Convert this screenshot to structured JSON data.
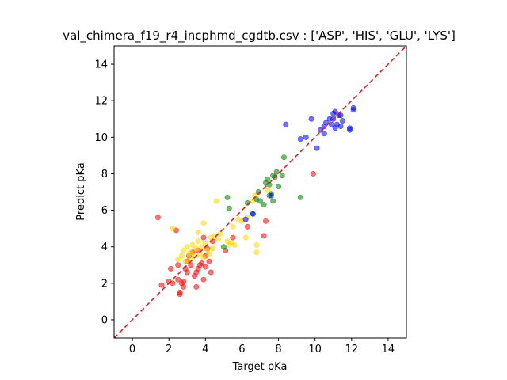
{
  "chart_data": {
    "type": "scatter",
    "title": "val_chimera_f19_r4_incphmd_cgdtb.csv : ['ASP', 'HIS', 'GLU', 'LYS']",
    "xlabel": "Target pKa",
    "ylabel": "Predict pKa",
    "xlim": [
      -1,
      15
    ],
    "ylim": [
      -1,
      15
    ],
    "xticks": [
      0,
      2,
      4,
      6,
      8,
      10,
      12,
      14
    ],
    "yticks": [
      0,
      2,
      4,
      6,
      8,
      10,
      12,
      14
    ],
    "grid": false,
    "reference_line": {
      "x": [
        -1,
        15
      ],
      "y": [
        -1,
        15
      ],
      "color": "#d62728",
      "style": "dashed"
    },
    "series": [
      {
        "color": "#ff0000",
        "points": [
          [
            1.4,
            5.6
          ],
          [
            1.6,
            1.9
          ],
          [
            2.0,
            2.1
          ],
          [
            2.1,
            2.8
          ],
          [
            2.2,
            2.0
          ],
          [
            2.4,
            4.9
          ],
          [
            2.5,
            3.0
          ],
          [
            2.5,
            2.2
          ],
          [
            2.6,
            1.4
          ],
          [
            2.6,
            1.5
          ],
          [
            2.7,
            2.0
          ],
          [
            2.8,
            1.8
          ],
          [
            2.8,
            2.1
          ],
          [
            2.9,
            2.8
          ],
          [
            3.0,
            2.6
          ],
          [
            3.0,
            3.2
          ],
          [
            3.1,
            3.5
          ],
          [
            3.2,
            3.0
          ],
          [
            3.3,
            3.7
          ],
          [
            3.4,
            2.4
          ],
          [
            3.5,
            1.8
          ],
          [
            3.5,
            2.6
          ],
          [
            3.6,
            2.8
          ],
          [
            3.6,
            3.8
          ],
          [
            3.8,
            3.1
          ],
          [
            3.9,
            2.2
          ],
          [
            3.9,
            4.5
          ],
          [
            4.0,
            3.5
          ],
          [
            4.1,
            3.9
          ],
          [
            4.2,
            3.2
          ],
          [
            4.3,
            2.6
          ],
          [
            4.4,
            4.3
          ],
          [
            5.1,
            3.8
          ],
          [
            5.5,
            4.5
          ],
          [
            6.3,
            5.1
          ],
          [
            7.2,
            4.6
          ],
          [
            7.3,
            5.4
          ],
          [
            9.9,
            8.0
          ],
          [
            3.7,
            3.0
          ],
          [
            4.0,
            2.9
          ]
        ]
      },
      {
        "color": "#ffd700",
        "points": [
          [
            2.2,
            5.0
          ],
          [
            2.5,
            3.3
          ],
          [
            2.7,
            3.5
          ],
          [
            2.8,
            3.8
          ],
          [
            2.9,
            3.2
          ],
          [
            3.0,
            4.0
          ],
          [
            3.1,
            3.6
          ],
          [
            3.2,
            3.3
          ],
          [
            3.3,
            4.1
          ],
          [
            3.4,
            3.5
          ],
          [
            3.5,
            3.9
          ],
          [
            3.6,
            4.3
          ],
          [
            3.7,
            3.6
          ],
          [
            3.8,
            4.0
          ],
          [
            3.9,
            3.4
          ],
          [
            3.9,
            5.3
          ],
          [
            4.0,
            4.2
          ],
          [
            4.1,
            3.8
          ],
          [
            4.2,
            3.6
          ],
          [
            4.3,
            4.5
          ],
          [
            4.4,
            3.9
          ],
          [
            4.5,
            4.6
          ],
          [
            4.6,
            6.5
          ],
          [
            4.7,
            4.4
          ],
          [
            4.8,
            4.7
          ],
          [
            5.2,
            4.3
          ],
          [
            5.3,
            4.1
          ],
          [
            5.4,
            4.2
          ],
          [
            5.5,
            5.1
          ],
          [
            5.6,
            4.1
          ],
          [
            5.8,
            5.5
          ],
          [
            6.0,
            5.4
          ],
          [
            6.2,
            4.5
          ],
          [
            6.3,
            5.6
          ],
          [
            6.6,
            6.5
          ],
          [
            6.7,
            6.8
          ],
          [
            6.8,
            3.7
          ],
          [
            6.8,
            4.1
          ],
          [
            7.4,
            7.1
          ],
          [
            3.6,
            4.8
          ],
          [
            3.2,
            3.7
          ]
        ]
      },
      {
        "color": "#008000",
        "points": [
          [
            5.2,
            6.7
          ],
          [
            5.3,
            6.1
          ],
          [
            6.3,
            6.4
          ],
          [
            6.6,
            5.8
          ],
          [
            6.9,
            7.0
          ],
          [
            7.0,
            6.5
          ],
          [
            7.2,
            6.3
          ],
          [
            7.3,
            7.5
          ],
          [
            7.4,
            7.7
          ],
          [
            7.5,
            6.8
          ],
          [
            7.6,
            6.9
          ],
          [
            7.7,
            7.9
          ],
          [
            7.7,
            6.5
          ],
          [
            7.8,
            7.8
          ],
          [
            7.9,
            8.1
          ],
          [
            8.0,
            7.3
          ],
          [
            8.2,
            7.9
          ],
          [
            8.3,
            8.9
          ],
          [
            9.2,
            6.7
          ],
          [
            5.0,
            4.0
          ],
          [
            6.8,
            6.6
          ],
          [
            7.5,
            7.4
          ]
        ]
      },
      {
        "color": "#0000ff",
        "points": [
          [
            6.2,
            5.5
          ],
          [
            6.6,
            5.8
          ],
          [
            7.6,
            6.8
          ],
          [
            8.4,
            10.7
          ],
          [
            9.2,
            9.9
          ],
          [
            9.5,
            10.0
          ],
          [
            9.8,
            11.0
          ],
          [
            10.1,
            9.4
          ],
          [
            10.3,
            10.4
          ],
          [
            10.5,
            10.6
          ],
          [
            10.5,
            10.2
          ],
          [
            10.6,
            10.8
          ],
          [
            10.8,
            11.0
          ],
          [
            10.9,
            10.7
          ],
          [
            11.0,
            11.3
          ],
          [
            11.1,
            11.4
          ],
          [
            11.1,
            10.5
          ],
          [
            11.2,
            10.7
          ],
          [
            11.3,
            11.2
          ],
          [
            11.4,
            10.6
          ],
          [
            11.4,
            11.2
          ],
          [
            11.5,
            10.9
          ],
          [
            11.9,
            10.4
          ],
          [
            11.9,
            10.5
          ],
          [
            12.1,
            11.5
          ],
          [
            12.1,
            11.6
          ],
          [
            11.0,
            11.0
          ]
        ]
      }
    ]
  }
}
